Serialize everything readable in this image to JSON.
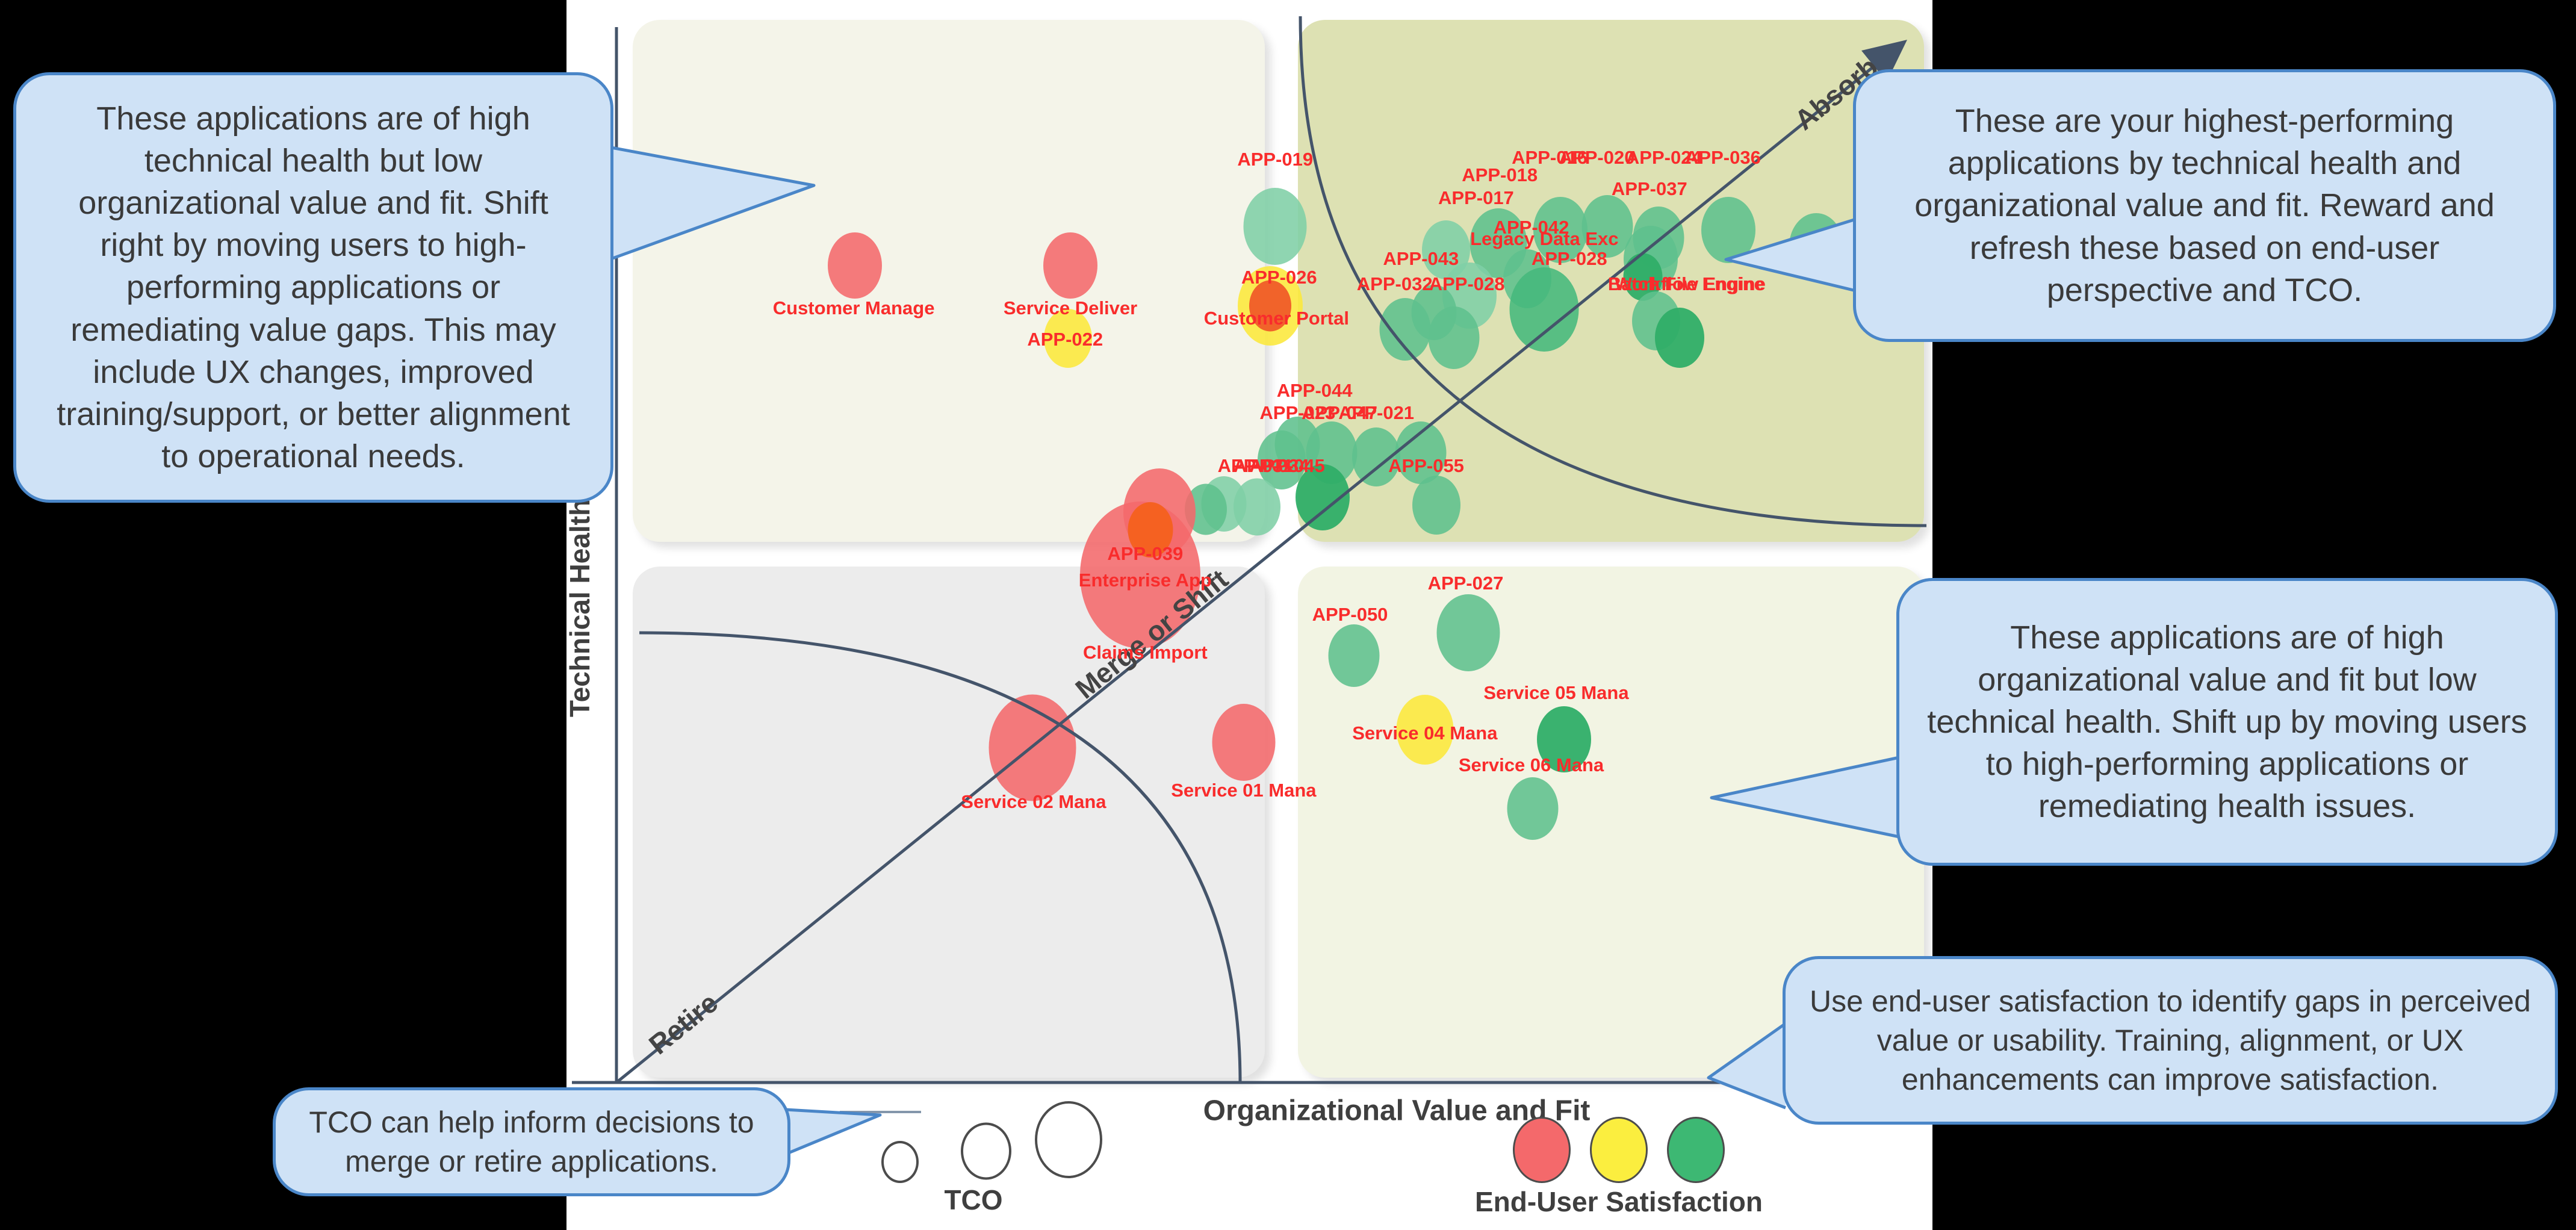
{
  "callouts": {
    "top_left": {
      "text": "These applications are of high technical health but low organizational value and fit. Shift right by moving users to high-performing applications or remediating value gaps. This may include UX changes, improved training/support, or better alignment to operational needs."
    },
    "top_right": {
      "text": "These are your highest-performing applications by technical health and organizational value and fit. Reward and refresh these based on end-user perspective and TCO."
    },
    "mid_right": {
      "text": "These applications are of high organizational value and fit but low technical health. Shift up by moving users to high-performing applications or remediating health issues."
    },
    "bottom_right": {
      "text": "Use end-user satisfaction to identify gaps in perceived value or usability. Training, alignment, or UX enhancements can improve satisfaction."
    },
    "bottom_left": {
      "text": "TCO can help inform decisions to merge or retire applications."
    }
  },
  "axes": {
    "x_label": "Organizational Value and Fit",
    "y_label": "Technical Health"
  },
  "zones": {
    "top_right": "Absorb",
    "bottom_left": "Retire",
    "diagonal": "Merge or Shift"
  },
  "legend": {
    "size_label": "TCO",
    "color_label": "End-User Satisfaction",
    "satisfaction_colors": [
      "#f4696b",
      "#fbee3f",
      "#3db873"
    ],
    "tco_diameters": [
      54,
      76,
      104
    ]
  },
  "colors": {
    "red": "#f4696b",
    "yellow": "#fce83a",
    "orange": "#f4611d",
    "orangered": "#f05c28",
    "green": "#5fc08d",
    "green_light": "#80cfa6",
    "green_dark": "#2fae68",
    "green_mid": "#45b87c",
    "label_red": "#f92c2c",
    "line": "#44546a",
    "quad_tl": "#f4f4e9",
    "quad_tr": "#dde1b3",
    "quad_bl": "#ececec",
    "quad_br": "#f2f4e3",
    "callout_fill": "#cfe2f6",
    "callout_border": "#4a86c8"
  },
  "chart_data": {
    "type": "bubble",
    "x_axis": {
      "label": "Organizational Value and Fit",
      "range": [
        0,
        100
      ]
    },
    "y_axis": {
      "label": "Technical Health",
      "range": [
        0,
        100
      ]
    },
    "size_dimension": "TCO",
    "color_dimension": "End-User Satisfaction",
    "zones": [
      "Absorb",
      "Merge or Shift",
      "Retire"
    ],
    "points": [
      {
        "label": "Customer Manage",
        "x": 18.4,
        "y": 78.1,
        "size": 90,
        "color": "red",
        "lx": 18.3,
        "ly": 74.0
      },
      {
        "label": "Service Deliver",
        "x": 34.8,
        "y": 78.1,
        "size": 90,
        "color": "red",
        "lx": 34.8,
        "ly": 74.0
      },
      {
        "label": "APP-022",
        "x": 34.6,
        "y": 71.1,
        "size": 80,
        "color": "yellow",
        "lx": 34.4,
        "ly": 71.0
      },
      {
        "label": "APP-019",
        "x": 50.4,
        "y": 81.8,
        "size": 105,
        "color": "green_light",
        "lx": 50.4,
        "ly": 88.2
      },
      {
        "label": "APP-026",
        "x": 50.0,
        "y": 74.2,
        "size": 108,
        "color": "yellow",
        "lx": 50.7,
        "ly": 76.9
      },
      {
        "label": "",
        "x": 50.0,
        "y": 74.2,
        "size": 70,
        "color": "orangered",
        "lx": null,
        "ly": null
      },
      {
        "label": "Customer Portal",
        "x": 50.5,
        "y": 73.0,
        "size": 0,
        "color": "yellow",
        "lx": 50.5,
        "ly": 73.0
      },
      {
        "label": "APP-017",
        "x": 63.4,
        "y": 79.6,
        "size": 80,
        "color": "green_light",
        "lx": 65.7,
        "ly": 84.5
      },
      {
        "label": "APP-018",
        "x": 67.4,
        "y": 80.2,
        "size": 95,
        "color": "green",
        "lx": 67.5,
        "ly": 86.7
      },
      {
        "label": "APP-016",
        "x": 72.1,
        "y": 81.5,
        "size": 90,
        "color": "green",
        "lx": 71.3,
        "ly": 88.4
      },
      {
        "label": "APP-020",
        "x": 75.7,
        "y": 81.8,
        "size": 85,
        "color": "green",
        "lx": 74.9,
        "ly": 88.4
      },
      {
        "label": "APP-024",
        "x": 79.6,
        "y": 80.7,
        "size": 85,
        "color": "green",
        "lx": 80.0,
        "ly": 88.4
      },
      {
        "label": "APP-036",
        "x": 84.9,
        "y": 81.5,
        "size": 90,
        "color": "green",
        "lx": 84.5,
        "ly": 88.4
      },
      {
        "label": "APP-037",
        "x": 79.0,
        "y": 78.7,
        "size": 90,
        "color": "green",
        "lx": 78.9,
        "ly": 85.4
      },
      {
        "label": "",
        "x": 78.4,
        "y": 77.0,
        "size": 65,
        "color": "green_dark",
        "lx": null,
        "ly": null
      },
      {
        "label": "APP-042",
        "x": 69.6,
        "y": 76.8,
        "size": 80,
        "color": "green",
        "lx": 69.9,
        "ly": 81.7
      },
      {
        "label": "Legacy Data Exc",
        "x": 65.2,
        "y": 75.2,
        "size": 90,
        "color": "green_light",
        "lx": 70.9,
        "ly": 80.6
      },
      {
        "label": "APP-043",
        "x": 62.5,
        "y": 73.6,
        "size": 75,
        "color": "green",
        "lx": 61.5,
        "ly": 78.7
      },
      {
        "label": "APP-028",
        "x": 70.9,
        "y": 73.9,
        "size": 115,
        "color": "green_mid",
        "lx": 72.8,
        "ly": 78.7
      },
      {
        "label": "APP-032",
        "x": 60.3,
        "y": 72.0,
        "size": 85,
        "color": "green",
        "lx": 59.5,
        "ly": 76.3
      },
      {
        "label": "APP-028",
        "x": 64.0,
        "y": 71.2,
        "size": 85,
        "color": "green",
        "lx": 65.0,
        "ly": 76.3
      },
      {
        "label": "Batch File Engine",
        "x": 79.4,
        "y": 72.8,
        "size": 80,
        "color": "green",
        "lx": 81.7,
        "ly": 76.3
      },
      {
        "label": "Workflow Engine",
        "x": 81.2,
        "y": 71.2,
        "size": 82,
        "color": "green_dark",
        "lx": 82.0,
        "ly": 76.3
      },
      {
        "label": "",
        "x": 91.6,
        "y": 79.9,
        "size": 90,
        "color": "green",
        "lx": null,
        "ly": null
      },
      {
        "label": "APP-044",
        "x": 52.1,
        "y": 61.0,
        "size": 75,
        "color": "green",
        "lx": 53.4,
        "ly": 66.1
      },
      {
        "label": "APP-023",
        "x": 50.9,
        "y": 59.5,
        "size": 80,
        "color": "green",
        "lx": 52.1,
        "ly": 64.0
      },
      {
        "label": "APP-047",
        "x": 54.7,
        "y": 60.2,
        "size": 85,
        "color": "green",
        "lx": 55.3,
        "ly": 64.0
      },
      {
        "label": "APP-021",
        "x": 58.1,
        "y": 59.8,
        "size": 80,
        "color": "green",
        "lx": 58.1,
        "ly": 64.0
      },
      {
        "label": "",
        "x": 61.5,
        "y": 60.2,
        "size": 85,
        "color": "green",
        "lx": null,
        "ly": null
      },
      {
        "label": "APP-031",
        "x": 46.5,
        "y": 55.3,
        "size": 75,
        "color": "green_light",
        "lx": 48.9,
        "ly": 58.9
      },
      {
        "label": "APP-034",
        "x": 49.0,
        "y": 55.0,
        "size": 78,
        "color": "green_light",
        "lx": 50.1,
        "ly": 58.9
      },
      {
        "label": "APP-045",
        "x": 54.0,
        "y": 55.9,
        "size": 90,
        "color": "green_dark",
        "lx": 51.3,
        "ly": 58.9
      },
      {
        "label": "APP-055",
        "x": 62.7,
        "y": 55.2,
        "size": 80,
        "color": "green",
        "lx": 61.9,
        "ly": 58.9
      },
      {
        "label": "",
        "x": 45.1,
        "y": 54.8,
        "size": 70,
        "color": "green",
        "lx": null,
        "ly": null
      },
      {
        "label": "APP-039",
        "x": 40.1,
        "y": 48.5,
        "size": 200,
        "color": "red",
        "lx": 40.5,
        "ly": 50.5
      },
      {
        "label": "",
        "x": 41.6,
        "y": 54.5,
        "size": 120,
        "color": "red",
        "lx": null,
        "ly": null
      },
      {
        "label": "",
        "x": 40.9,
        "y": 52.8,
        "size": 75,
        "color": "orange",
        "lx": null,
        "ly": null
      },
      {
        "label": "Enterprise App",
        "x": 40.5,
        "y": 48.0,
        "size": 0,
        "color": "red",
        "lx": 40.5,
        "ly": 48.0
      },
      {
        "label": "Claims Import",
        "x": 40.5,
        "y": 41.1,
        "size": 0,
        "color": "red",
        "lx": 40.5,
        "ly": 41.1
      },
      {
        "label": "Service 02 Mana",
        "x": 31.9,
        "y": 32.0,
        "size": 145,
        "color": "red",
        "lx": 32.0,
        "ly": 26.8
      },
      {
        "label": "Service 01 Mana",
        "x": 48.0,
        "y": 32.5,
        "size": 105,
        "color": "red",
        "lx": 48.0,
        "ly": 27.9
      },
      {
        "label": "APP-050",
        "x": 56.4,
        "y": 40.8,
        "size": 85,
        "color": "green",
        "lx": 56.1,
        "ly": 44.7
      },
      {
        "label": "APP-027",
        "x": 65.1,
        "y": 43.0,
        "size": 105,
        "color": "green",
        "lx": 64.9,
        "ly": 47.7
      },
      {
        "label": "Service 04 Mana",
        "x": 61.8,
        "y": 33.7,
        "size": 95,
        "color": "yellow",
        "lx": 61.8,
        "ly": 33.4
      },
      {
        "label": "Service 05 Mana",
        "x": 72.4,
        "y": 32.8,
        "size": 90,
        "color": "green_dark",
        "lx": 71.8,
        "ly": 37.2
      },
      {
        "label": "Service 06 Mana",
        "x": 70.0,
        "y": 26.2,
        "size": 85,
        "color": "green",
        "lx": 69.9,
        "ly": 30.3
      }
    ]
  }
}
